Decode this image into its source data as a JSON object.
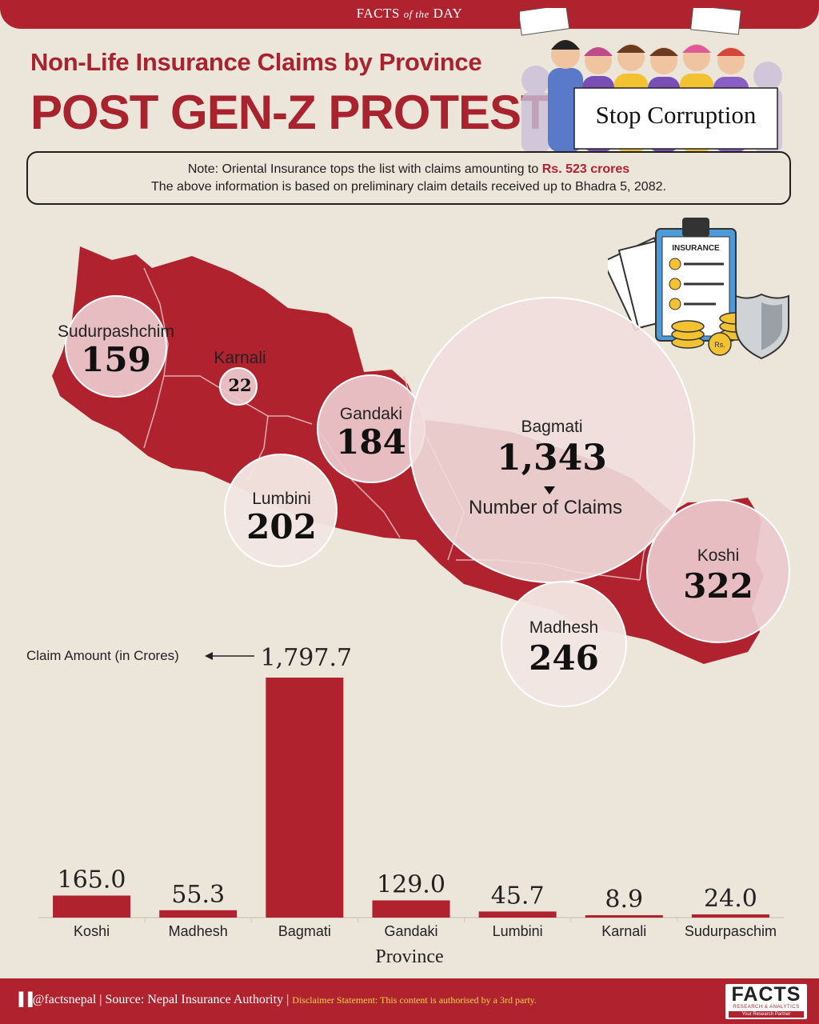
{
  "header": {
    "banner_main": "FACTS",
    "banner_of": "of the",
    "banner_end": "DAY",
    "subtitle": "Non-Life Insurance Claims by Province",
    "title": "POST GEN-Z PROTESTS",
    "protest_sign": "Stop Corruption"
  },
  "note": {
    "line1_prefix": "Note: Oriental Insurance tops the list with claims amounting to",
    "line1_highlight": "Rs. 523 crores",
    "line2": "The above information is based on preliminary claim details received up to Bhadra 5, 2082."
  },
  "insurance_icon": {
    "label": "INSURANCE",
    "coin_label": "Rs."
  },
  "map": {
    "caption": "Number of Claims",
    "provinces": [
      {
        "name": "Sudurpashchim",
        "claims": "159"
      },
      {
        "name": "Karnali",
        "claims": "22"
      },
      {
        "name": "Gandaki",
        "claims": "184"
      },
      {
        "name": "Lumbini",
        "claims": "202"
      },
      {
        "name": "Bagmati",
        "claims": "1,343"
      },
      {
        "name": "Koshi",
        "claims": "322"
      },
      {
        "name": "Madhesh",
        "claims": "246"
      }
    ]
  },
  "chart_data": {
    "type": "bar",
    "categories": [
      "Koshi",
      "Madhesh",
      "Bagmati",
      "Gandaki",
      "Lumbini",
      "Karnali",
      "Sudurpaschim"
    ],
    "values": [
      165.0,
      55.3,
      1797.7,
      129.0,
      45.7,
      8.9,
      24.0
    ],
    "value_labels": [
      "165.0",
      "55.3",
      "1,797.7",
      "129.0",
      "45.7",
      "8.9",
      "24.0"
    ],
    "annotation": "Claim Amount (in Crores)",
    "xlabel": "Province",
    "ylabel": "",
    "ylim": [
      0,
      1797.7
    ],
    "grid": false,
    "bar_color": "#b0232e"
  },
  "footer": {
    "handle": "@factsnepal",
    "source": "Source: Nepal Insurance Authority",
    "disclaimer": "Disclaimer Statement: This content is authorised by a 3rd party.",
    "logo_word": "FACTS",
    "logo_sub": "RESEARCH & ANALYTICS",
    "logo_tag": "Your Research Partner"
  },
  "colors": {
    "brand_red": "#b0232e",
    "background": "#ebe5da",
    "map_fill": "#b0232e",
    "bubble_fill": "#f4ece6"
  }
}
